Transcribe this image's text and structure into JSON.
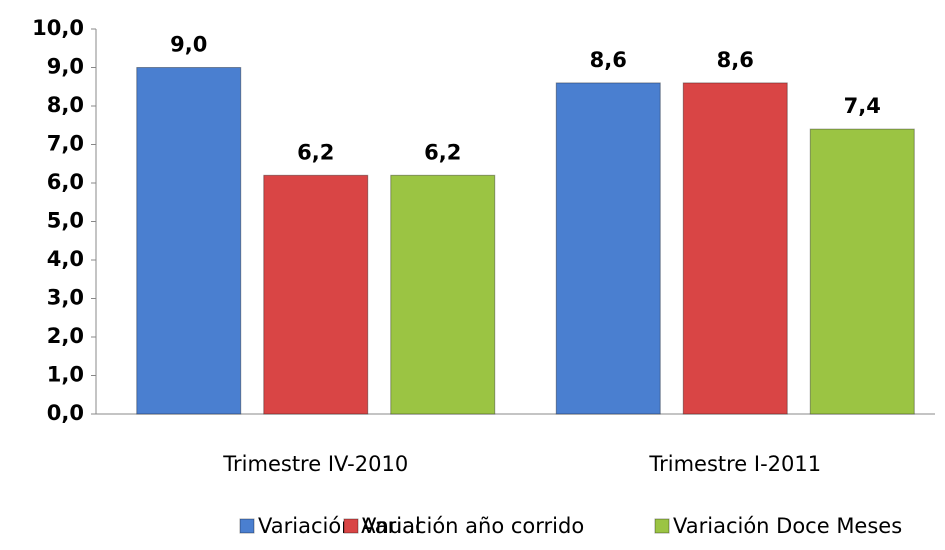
{
  "chart_data": {
    "type": "bar",
    "categories": [
      "Trimestre IV-2010",
      "Trimestre I-2011"
    ],
    "series": [
      {
        "name": "Variación Anual",
        "color": "#4a7fd0",
        "values": [
          9.0,
          8.6
        ],
        "value_labels": [
          "9,0",
          "8,6"
        ]
      },
      {
        "name": "Variación año corrido",
        "color": "#d94545",
        "values": [
          6.2,
          8.6
        ],
        "value_labels": [
          "6,2",
          "8,6"
        ]
      },
      {
        "name": "Variación Doce Meses",
        "color": "#9bc443",
        "values": [
          6.2,
          7.4
        ],
        "value_labels": [
          "6,2",
          "7,4"
        ]
      }
    ],
    "ylim": [
      0,
      10
    ],
    "yticks": [
      {
        "value": 0,
        "label": "0,0"
      },
      {
        "value": 1,
        "label": "1,0"
      },
      {
        "value": 2,
        "label": "2,0"
      },
      {
        "value": 3,
        "label": "3,0"
      },
      {
        "value": 4,
        "label": "4,0"
      },
      {
        "value": 5,
        "label": "5,0"
      },
      {
        "value": 6,
        "label": "6,0"
      },
      {
        "value": 7,
        "label": "7,0"
      },
      {
        "value": 8,
        "label": "8,0"
      },
      {
        "value": 9,
        "label": "9,0"
      },
      {
        "value": 10,
        "label": "10,0"
      }
    ],
    "grid": false,
    "legend": "bottom"
  }
}
